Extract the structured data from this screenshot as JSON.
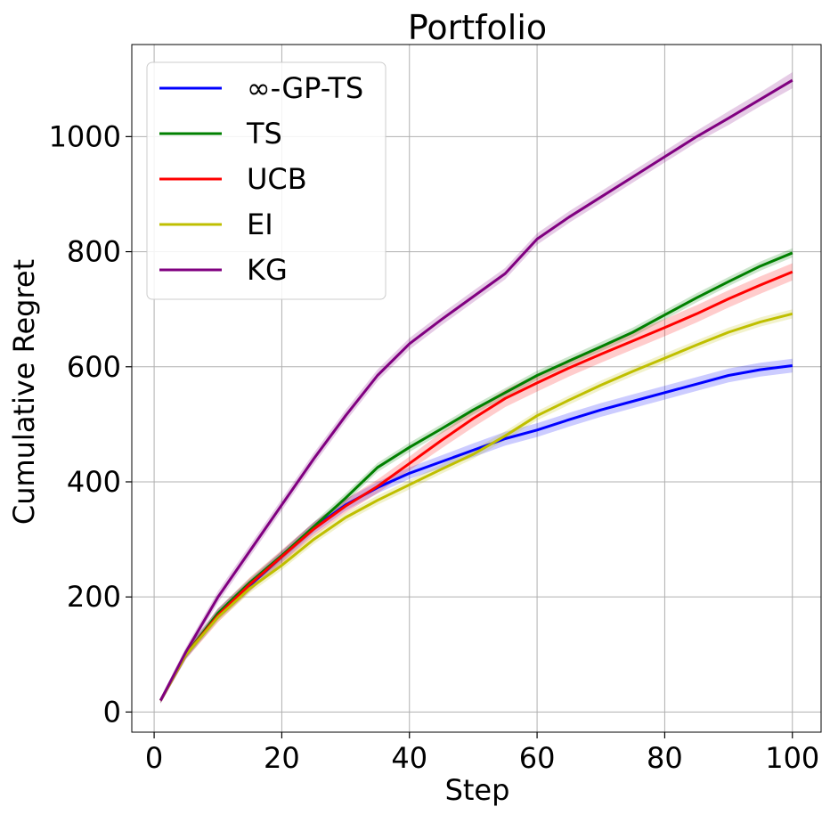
{
  "chart_data": {
    "type": "line",
    "title": "Portfolio",
    "xlabel": "Step",
    "ylabel": "Cumulative Regret",
    "xlim": [
      -3.5,
      104.5
    ],
    "ylim": [
      -35,
      1160
    ],
    "xticks": [
      0,
      20,
      40,
      60,
      80,
      100
    ],
    "yticks": [
      0,
      200,
      400,
      600,
      800,
      1000
    ],
    "grid": true,
    "legend_position": "top-left",
    "x": [
      1,
      5,
      10,
      15,
      20,
      25,
      30,
      35,
      40,
      45,
      50,
      55,
      60,
      65,
      70,
      75,
      80,
      85,
      90,
      95,
      100
    ],
    "series": [
      {
        "name": "∞-GP-TS",
        "color": "#0000ff",
        "values": [
          20,
          100,
          170,
          220,
          270,
          320,
          360,
          390,
          415,
          435,
          455,
          475,
          490,
          508,
          525,
          540,
          555,
          570,
          585,
          595,
          602
        ],
        "band": [
          5,
          8,
          10,
          10,
          10,
          10,
          10,
          10,
          10,
          11,
          12,
          12,
          12,
          12,
          12,
          12,
          12,
          12,
          12,
          12,
          12
        ]
      },
      {
        "name": "TS",
        "color": "#008000",
        "values": [
          20,
          100,
          172,
          225,
          272,
          322,
          372,
          425,
          460,
          492,
          525,
          555,
          585,
          610,
          635,
          660,
          690,
          720,
          748,
          775,
          798
        ],
        "band": [
          4,
          6,
          8,
          8,
          8,
          8,
          8,
          8,
          8,
          8,
          8,
          8,
          8,
          8,
          8,
          8,
          8,
          8,
          8,
          8,
          8
        ]
      },
      {
        "name": "UCB",
        "color": "#ff0000",
        "values": [
          20,
          100,
          168,
          222,
          270,
          318,
          358,
          392,
          432,
          472,
          510,
          545,
          572,
          598,
          622,
          645,
          668,
          692,
          718,
          742,
          765
        ],
        "band": [
          5,
          8,
          12,
          12,
          12,
          12,
          12,
          12,
          12,
          14,
          15,
          15,
          15,
          15,
          15,
          15,
          15,
          15,
          15,
          15,
          15
        ]
      },
      {
        "name": "EI",
        "color": "#bfbf00",
        "values": [
          20,
          100,
          165,
          215,
          255,
          300,
          338,
          368,
          395,
          422,
          448,
          480,
          515,
          542,
          568,
          592,
          615,
          638,
          660,
          678,
          692
        ],
        "band": [
          4,
          6,
          8,
          8,
          8,
          8,
          8,
          8,
          8,
          8,
          8,
          8,
          8,
          8,
          8,
          8,
          8,
          8,
          8,
          8,
          8
        ]
      },
      {
        "name": "KG",
        "color": "#800080",
        "values": [
          20,
          105,
          200,
          280,
          360,
          440,
          515,
          585,
          640,
          682,
          722,
          762,
          822,
          860,
          895,
          930,
          965,
          1000,
          1032,
          1065,
          1098
        ],
        "band": [
          5,
          8,
          10,
          10,
          10,
          10,
          10,
          10,
          10,
          10,
          10,
          10,
          10,
          10,
          10,
          10,
          10,
          10,
          12,
          12,
          14
        ]
      }
    ]
  }
}
